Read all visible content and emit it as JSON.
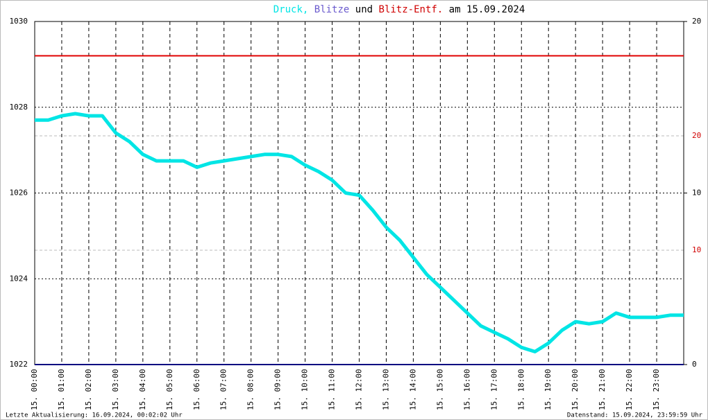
{
  "chart_data": {
    "type": "line",
    "title_parts": [
      {
        "text": "Druck,",
        "color": "#00e5e5"
      },
      {
        "text": "Blitze",
        "color": "#6a5acd"
      },
      {
        "text": "und",
        "color": "#000000"
      },
      {
        "text": "Blitz-Entf.",
        "color": "#d00000"
      },
      {
        "text": "am 15.09.2024",
        "color": "#000000"
      }
    ],
    "footer_left": "Letzte Aktualisierung: 16.09.2024, 00:02:02 Uhr",
    "footer_right": "Datenstand: 15.09.2024, 23:59:59 Uhr",
    "xlim": [
      0,
      24
    ],
    "xticks": [
      {
        "value": 0,
        "label": "15. 00:00"
      },
      {
        "value": 1,
        "label": "15. 01:00"
      },
      {
        "value": 2,
        "label": "15. 02:00"
      },
      {
        "value": 3,
        "label": "15. 03:00"
      },
      {
        "value": 4,
        "label": "15. 04:00"
      },
      {
        "value": 5,
        "label": "15. 05:00"
      },
      {
        "value": 6,
        "label": "15. 06:00"
      },
      {
        "value": 7,
        "label": "15. 07:00"
      },
      {
        "value": 8,
        "label": "15. 08:00"
      },
      {
        "value": 9,
        "label": "15. 09:00"
      },
      {
        "value": 10,
        "label": "15. 10:00"
      },
      {
        "value": 11,
        "label": "15. 11:00"
      },
      {
        "value": 12,
        "label": "15. 12:00"
      },
      {
        "value": 13,
        "label": "15. 13:00"
      },
      {
        "value": 14,
        "label": "15. 14:00"
      },
      {
        "value": 15,
        "label": "15. 15:00"
      },
      {
        "value": 16,
        "label": "15. 16:00"
      },
      {
        "value": 17,
        "label": "15. 17:00"
      },
      {
        "value": 18,
        "label": "15. 18:00"
      },
      {
        "value": 19,
        "label": "15. 19:00"
      },
      {
        "value": 20,
        "label": "15. 20:00"
      },
      {
        "value": 21,
        "label": "15. 21:00"
      },
      {
        "value": 22,
        "label": "15. 22:00"
      },
      {
        "value": 23,
        "label": "15. 23:00"
      }
    ],
    "ylim": [
      1022,
      1030
    ],
    "yticks": [
      1022,
      1024,
      1026,
      1028,
      1030
    ],
    "y2lim": [
      0,
      20
    ],
    "y2ticks": [
      0,
      10,
      20
    ],
    "y3lim": [
      0,
      30
    ],
    "y3ticks": [
      10,
      20
    ],
    "y3color": "#d00000",
    "series": [
      {
        "name": "Druck",
        "color": "#00e5e5",
        "axis": "y",
        "x": [
          0,
          0.5,
          1,
          1.5,
          2,
          2.5,
          3,
          3.5,
          4,
          4.5,
          5,
          5.5,
          6,
          6.5,
          7,
          7.5,
          8,
          8.5,
          9,
          9.5,
          10,
          10.5,
          11,
          11.5,
          12,
          12.5,
          13,
          13.5,
          14,
          14.5,
          15,
          15.5,
          16,
          16.5,
          17,
          17.5,
          18,
          18.5,
          19,
          19.5,
          20,
          20.5,
          21,
          21.5,
          22,
          22.5,
          23,
          23.5,
          24
        ],
        "values": [
          1027.7,
          1027.7,
          1027.8,
          1027.85,
          1027.8,
          1027.8,
          1027.4,
          1027.2,
          1026.9,
          1026.75,
          1026.75,
          1026.75,
          1026.6,
          1026.7,
          1026.75,
          1026.8,
          1026.85,
          1026.9,
          1026.9,
          1026.85,
          1026.65,
          1026.5,
          1026.3,
          1026.0,
          1025.95,
          1025.6,
          1025.2,
          1024.9,
          1024.5,
          1024.1,
          1023.8,
          1023.5,
          1023.2,
          1022.9,
          1022.75,
          1022.6,
          1022.4,
          1022.3,
          1022.5,
          1022.8,
          1023.0,
          1022.95,
          1023.0,
          1023.2,
          1023.1,
          1023.1,
          1023.1,
          1023.15,
          1023.15
        ]
      },
      {
        "name": "Blitze",
        "color": "#000080",
        "axis": "y2",
        "x": [
          0,
          24
        ],
        "values": [
          0,
          0
        ]
      },
      {
        "name": "Blitz-Entf.",
        "color": "#e00000",
        "axis": "y3",
        "x": [
          0,
          24
        ],
        "values": [
          27,
          27
        ]
      }
    ]
  }
}
